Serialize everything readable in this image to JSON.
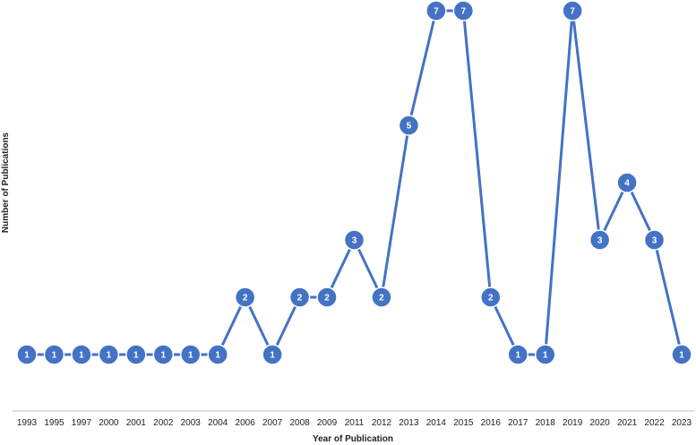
{
  "chart_data": {
    "type": "line",
    "xlabel": "Year of Publication",
    "ylabel": "Number of Publications",
    "categories": [
      "1993",
      "1995",
      "1997",
      "2000",
      "2001",
      "2002",
      "2003",
      "2004",
      "2006",
      "2007",
      "2008",
      "2009",
      "2011",
      "2012",
      "2013",
      "2014",
      "2015",
      "2016",
      "2017",
      "2018",
      "2019",
      "2020",
      "2021",
      "2022",
      "2023"
    ],
    "series": [
      {
        "values": [
          1,
          1,
          1,
          1,
          1,
          1,
          1,
          1,
          2,
          1,
          2,
          2,
          3,
          2,
          5,
          7,
          7,
          2,
          1,
          1,
          7,
          3,
          4,
          3,
          1
        ]
      }
    ],
    "ylim": [
      0,
      7
    ],
    "grid": false,
    "data_labels": true,
    "line_color": "#4472C4"
  }
}
